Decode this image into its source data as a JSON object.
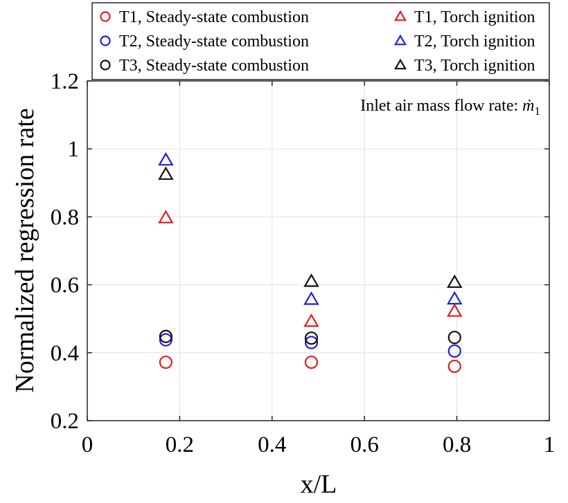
{
  "chart_data": {
    "type": "scatter",
    "xlabel": "x/L",
    "ylabel": "Normalized regression rate",
    "xlim": [
      0,
      1
    ],
    "ylim": [
      0.2,
      1.2
    ],
    "xticks": [
      0,
      0.2,
      0.4,
      0.6,
      0.8,
      1
    ],
    "xtick_labels": [
      "0",
      "0.2",
      "0.4",
      "0.6",
      "0.8",
      "1"
    ],
    "yticks": [
      0.2,
      0.4,
      0.6,
      0.8,
      1,
      1.2
    ],
    "ytick_labels": [
      "0.2",
      "0.4",
      "0.6",
      "0.8",
      "1",
      "1.2"
    ],
    "grid": true,
    "legend_position": "top-outside",
    "annotation": {
      "text": "Inlet air mass flow rate: ",
      "symbol": "ṁ",
      "subscript": "1",
      "position": "top-right"
    },
    "series": [
      {
        "name": "T1, Steady-state combustion",
        "marker": "circle",
        "color": "#e01f1f",
        "x": [
          0.17,
          0.485,
          0.795
        ],
        "y": [
          0.372,
          0.372,
          0.36
        ]
      },
      {
        "name": "T2, Steady-state combustion",
        "marker": "circle",
        "color": "#1f1fd6",
        "x": [
          0.17,
          0.485,
          0.795
        ],
        "y": [
          0.438,
          0.43,
          0.405
        ]
      },
      {
        "name": "T3, Steady-state combustion",
        "marker": "circle",
        "color": "#111111",
        "x": [
          0.17,
          0.485,
          0.795
        ],
        "y": [
          0.448,
          0.443,
          0.445
        ]
      },
      {
        "name": "T1, Torch ignition",
        "marker": "triangle",
        "color": "#e01f1f",
        "x": [
          0.17,
          0.485,
          0.795
        ],
        "y": [
          0.797,
          0.492,
          0.522
        ]
      },
      {
        "name": "T2, Torch ignition",
        "marker": "triangle",
        "color": "#1f1fd6",
        "x": [
          0.17,
          0.485,
          0.795
        ],
        "y": [
          0.967,
          0.557,
          0.558
        ]
      },
      {
        "name": "T3, Torch ignition",
        "marker": "triangle",
        "color": "#111111",
        "x": [
          0.17,
          0.485,
          0.795
        ],
        "y": [
          0.925,
          0.61,
          0.607
        ]
      }
    ]
  }
}
